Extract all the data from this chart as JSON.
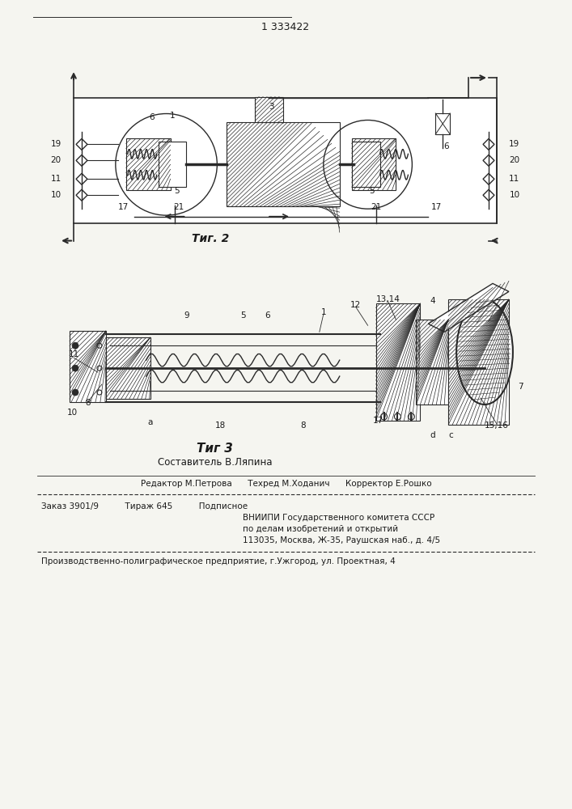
{
  "title_number": "1 333422",
  "fig2_label": "Τиг. 2",
  "fig3_label": "Τиг 3",
  "fig3_subtitle": "Составитель В.Ляпина",
  "editor_line": "Редактор М.Петрова      Техред М.Ходанич      Корректор Е.Рошко",
  "order_line": "Заказ 3901/9          Тираж 645          Подписное",
  "vniiipi_line": "ВНИИПИ Государственного комитета СССР",
  "affairs_line": "по делам изобретений и открытий",
  "address_line": "113035, Москва, Ж-35, Раушская наб., д. 4/5",
  "production_line": "Производственно-полиграфическое предприятие, г.Ужгород, ул. Проектная, 4",
  "bg_color": "#f5f5f0",
  "text_color": "#1a1a1a",
  "line_color": "#2a2a2a",
  "page_width": 7.07,
  "page_height": 10.0,
  "dpi": 100
}
